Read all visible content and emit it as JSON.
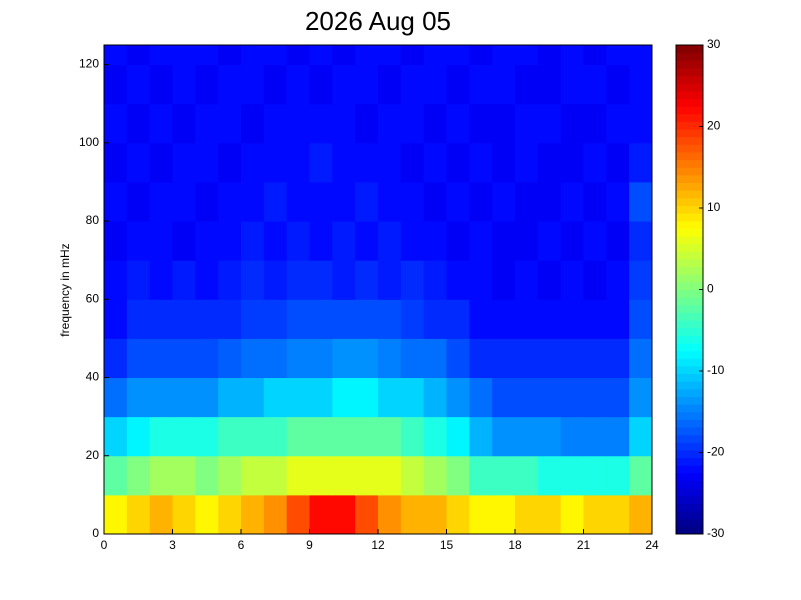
{
  "chart_data": {
    "type": "heatmap",
    "title": "2026 Aug 05",
    "y_label": "frequency in mHz",
    "x": [
      0,
      1,
      2,
      3,
      4,
      5,
      6,
      7,
      8,
      9,
      10,
      11,
      12,
      13,
      14,
      15,
      16,
      17,
      18,
      19,
      20,
      21,
      22,
      23,
      24
    ],
    "y": [
      0,
      10,
      20,
      30,
      40,
      50,
      60,
      70,
      80,
      90,
      100,
      110,
      120,
      125
    ],
    "values": [
      [
        8,
        10,
        12,
        10,
        8,
        10,
        12,
        14,
        18,
        22,
        22,
        18,
        14,
        12,
        12,
        10,
        8,
        8,
        10,
        10,
        8,
        10,
        10,
        12
      ],
      [
        -2,
        0,
        2,
        2,
        0,
        2,
        4,
        4,
        6,
        6,
        6,
        6,
        6,
        4,
        2,
        0,
        -4,
        -4,
        -4,
        -6,
        -6,
        -6,
        -6,
        -2
      ],
      [
        -10,
        -8,
        -6,
        -6,
        -6,
        -4,
        -4,
        -4,
        -2,
        -2,
        -2,
        -2,
        -2,
        -4,
        -6,
        -8,
        -12,
        -14,
        -14,
        -14,
        -15,
        -15,
        -15,
        -10
      ],
      [
        -16,
        -14,
        -14,
        -14,
        -14,
        -12,
        -12,
        -10,
        -10,
        -10,
        -8,
        -8,
        -10,
        -10,
        -12,
        -14,
        -16,
        -18,
        -18,
        -18,
        -18,
        -18,
        -18,
        -14
      ],
      [
        -20,
        -18,
        -18,
        -18,
        -18,
        -17,
        -16,
        -16,
        -15,
        -15,
        -14,
        -14,
        -15,
        -16,
        -16,
        -18,
        -20,
        -20,
        -20,
        -20,
        -20,
        -20,
        -20,
        -16
      ],
      [
        -22,
        -20,
        -20,
        -20,
        -20,
        -20,
        -19,
        -19,
        -18,
        -18,
        -18,
        -18,
        -18,
        -19,
        -20,
        -20,
        -22,
        -22,
        -22,
        -22,
        -22,
        -22,
        -22,
        -18
      ],
      [
        -22,
        -21,
        -22,
        -21,
        -22,
        -21,
        -20,
        -21,
        -20,
        -20,
        -21,
        -20,
        -21,
        -20,
        -21,
        -22,
        -22,
        -23,
        -22,
        -23,
        -22,
        -23,
        -22,
        -19
      ],
      [
        -23,
        -22,
        -22,
        -23,
        -22,
        -22,
        -21,
        -22,
        -21,
        -22,
        -21,
        -22,
        -21,
        -22,
        -22,
        -23,
        -22,
        -23,
        -23,
        -22,
        -23,
        -22,
        -23,
        -20
      ],
      [
        -22,
        -23,
        -22,
        -22,
        -23,
        -22,
        -22,
        -21,
        -22,
        -22,
        -22,
        -21,
        -22,
        -22,
        -23,
        -22,
        -23,
        -22,
        -23,
        -23,
        -22,
        -23,
        -22,
        -18
      ],
      [
        -23,
        -22,
        -23,
        -22,
        -22,
        -23,
        -22,
        -22,
        -22,
        -21,
        -22,
        -22,
        -22,
        -23,
        -22,
        -23,
        -22,
        -23,
        -22,
        -23,
        -23,
        -22,
        -23,
        -21
      ],
      [
        -22,
        -23,
        -22,
        -23,
        -22,
        -22,
        -23,
        -22,
        -22,
        -22,
        -22,
        -23,
        -22,
        -22,
        -23,
        -22,
        -23,
        -23,
        -22,
        -22,
        -23,
        -23,
        -22,
        -22
      ],
      [
        -23,
        -22,
        -23,
        -22,
        -23,
        -22,
        -22,
        -23,
        -22,
        -23,
        -22,
        -22,
        -23,
        -22,
        -22,
        -23,
        -22,
        -22,
        -23,
        -23,
        -22,
        -22,
        -23,
        -22
      ],
      [
        -22,
        -23,
        -22,
        -22,
        -22,
        -23,
        -22,
        -22,
        -23,
        -22,
        -23,
        -22,
        -22,
        -23,
        -22,
        -22,
        -23,
        -22,
        -22,
        -23,
        -22,
        -23,
        -22,
        -22
      ]
    ],
    "xlim": [
      0,
      24
    ],
    "xticks": [
      0,
      3,
      6,
      9,
      12,
      15,
      18,
      21,
      24
    ],
    "ylim": [
      0,
      125
    ],
    "yticks": [
      0,
      20,
      40,
      60,
      80,
      100,
      120
    ],
    "clim": [
      -30,
      30
    ],
    "cticks": [
      -30,
      -20,
      -10,
      0,
      10,
      20,
      30
    ],
    "colormap": "jet"
  }
}
